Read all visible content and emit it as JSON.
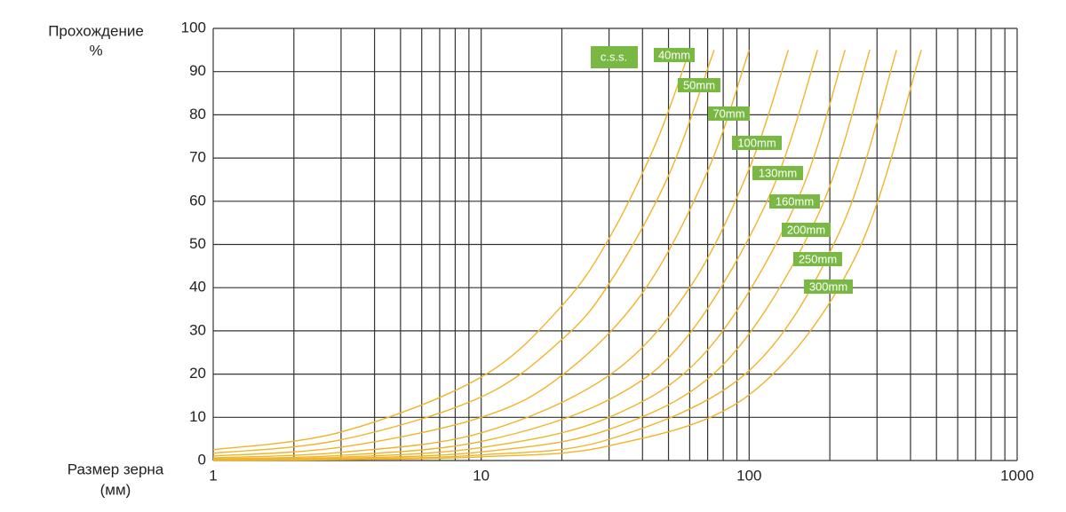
{
  "chart_data": {
    "type": "line",
    "log_x": true,
    "y_label": [
      "Прохождение",
      "%"
    ],
    "x_label": [
      "Размер зерна",
      "(мм)"
    ],
    "legend_title": "c.s.s.",
    "legend_color": "#79b943",
    "xlim": [
      1,
      1000
    ],
    "xticks": [
      1,
      10,
      100,
      1000
    ],
    "x_minor_grid": [
      2,
      3,
      4,
      5,
      6,
      7,
      8,
      9,
      20,
      30,
      40,
      50,
      60,
      70,
      80,
      90,
      200,
      300,
      400,
      500,
      600,
      700,
      800,
      900
    ],
    "ylim": [
      0,
      100
    ],
    "yticks": [
      0,
      10,
      20,
      30,
      40,
      50,
      60,
      70,
      80,
      90,
      100
    ],
    "grid": true,
    "series": [
      {
        "name": "40mm",
        "color": "#f0b429",
        "x": [
          1,
          3,
          10,
          20,
          30,
          45,
          60
        ],
        "values": [
          2.5,
          6.6,
          19.3,
          35.8,
          51.4,
          73.6,
          95
        ]
      },
      {
        "name": "50mm",
        "color": "#f0b429",
        "x": [
          1,
          3,
          10,
          20,
          30,
          50,
          74
        ],
        "values": [
          1.7,
          4.8,
          14.7,
          28.0,
          40.9,
          65.9,
          95
        ]
      },
      {
        "name": "70mm",
        "color": "#f0b429",
        "x": [
          1,
          3,
          10,
          20,
          40,
          70,
          100
        ],
        "values": [
          1.05,
          3.1,
          10.0,
          19.7,
          38.8,
          67.0,
          95
        ]
      },
      {
        "name": "100mm",
        "color": "#f0b429",
        "x": [
          1,
          3,
          10,
          30,
          60,
          100,
          140
        ],
        "values": [
          0.61,
          1.9,
          6.4,
          19.7,
          40.0,
          67.5,
          95
        ]
      },
      {
        "name": "130mm",
        "color": "#f0b429",
        "x": [
          1,
          3,
          10,
          30,
          60,
          120,
          180
        ],
        "values": [
          0.37,
          1.2,
          4.4,
          14.1,
          29.4,
          61.7,
          95
        ]
      },
      {
        "name": "160mm",
        "color": "#f0b429",
        "x": [
          1,
          3,
          10,
          30,
          70,
          150,
          228
        ],
        "values": [
          0.23,
          0.78,
          3.0,
          10.0,
          25.6,
          59.7,
          95
        ]
      },
      {
        "name": "200mm",
        "color": "#f0b429",
        "x": [
          1,
          3,
          10,
          30,
          80,
          180,
          282
        ],
        "values": [
          0.14,
          0.5,
          2.0,
          7.2,
          22.2,
          56.6,
          95
        ]
      },
      {
        "name": "250mm",
        "color": "#f0b429",
        "x": [
          1,
          3,
          10,
          30,
          100,
          220,
          355
        ],
        "values": [
          0.08,
          0.31,
          1.3,
          4.9,
          20.8,
          53.6,
          95
        ]
      },
      {
        "name": "300mm",
        "color": "#f0b429",
        "x": [
          1,
          3,
          10,
          30,
          100,
          250,
          439
        ],
        "values": [
          0.05,
          0.19,
          0.87,
          3.4,
          15.2,
          47.3,
          95
        ]
      }
    ]
  }
}
